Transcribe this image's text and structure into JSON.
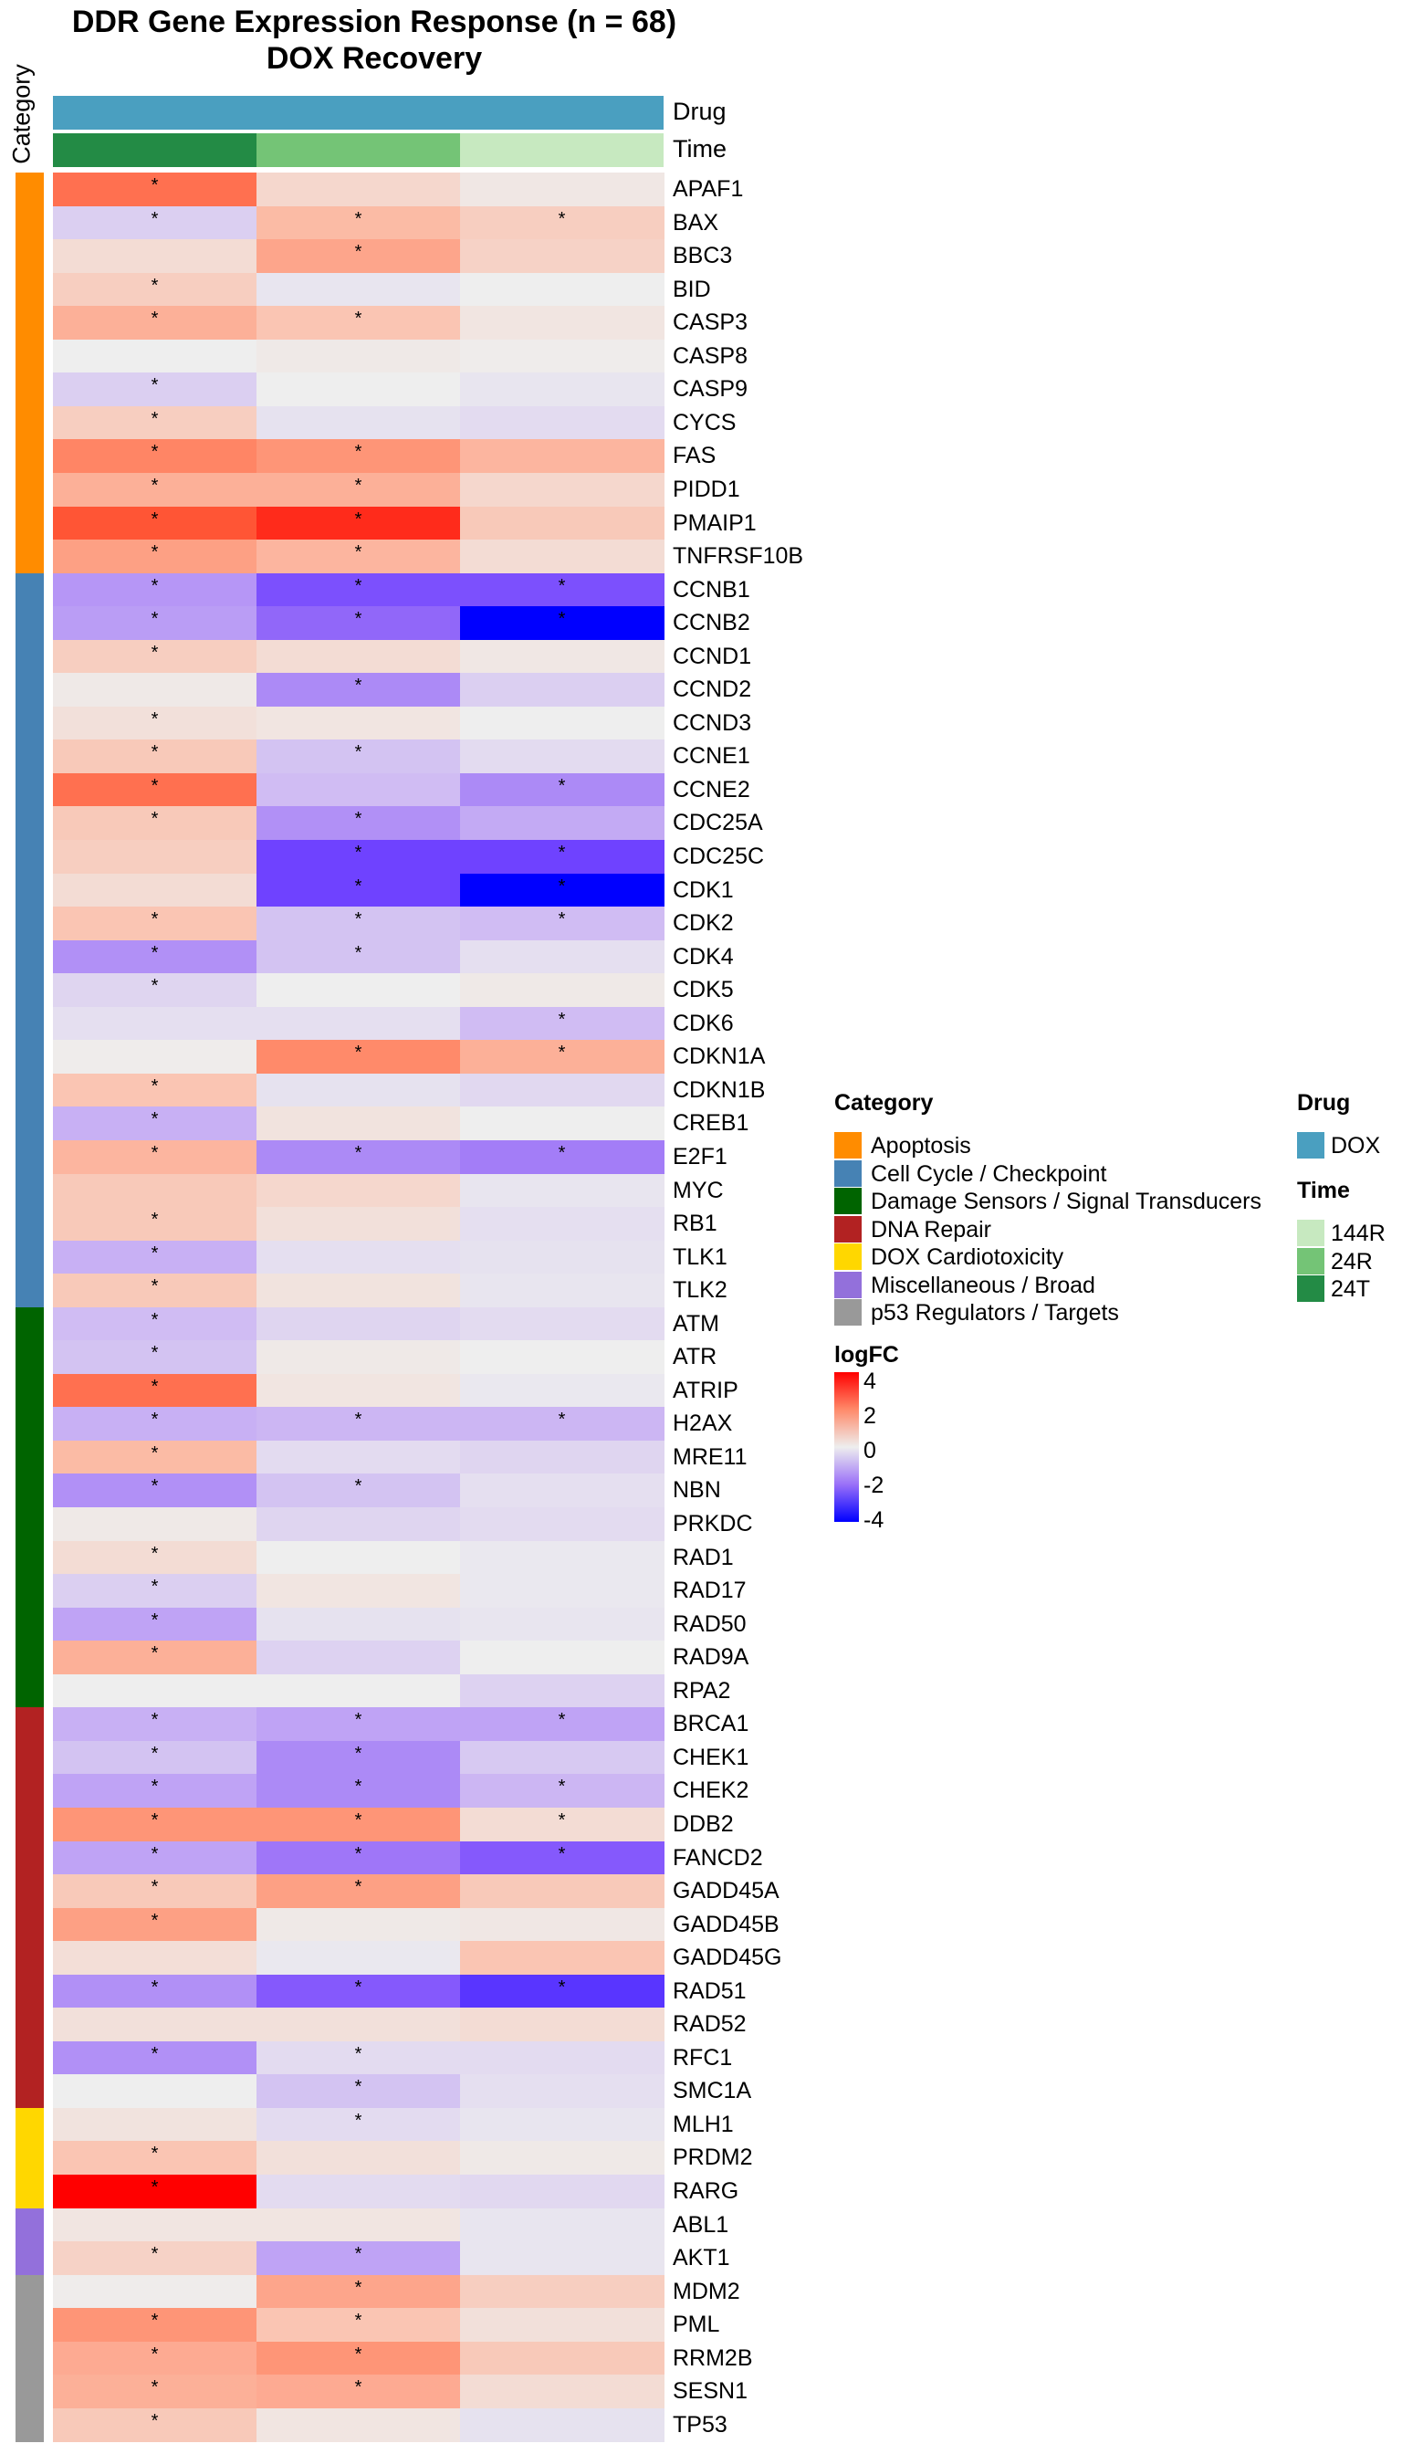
{
  "title": "DDR Gene Expression Response (n = 68)",
  "subtitle": "DOX Recovery",
  "category_axis_label": "Category",
  "annotations": {
    "drug_label": "Drug",
    "time_label": "Time",
    "drug_color": "#4A9FC0",
    "columns": [
      {
        "time": "24T",
        "drug": "DOX",
        "time_color": "#238B45"
      },
      {
        "time": "24R",
        "drug": "DOX",
        "time_color": "#74C476"
      },
      {
        "time": "144R",
        "drug": "DOX",
        "time_color": "#C7E9C0"
      }
    ]
  },
  "legend": {
    "category_title": "Category",
    "categories": [
      {
        "name": "Apoptosis",
        "color": "#FF8C00"
      },
      {
        "name": "Cell Cycle / Checkpoint",
        "color": "#4682B4"
      },
      {
        "name": "Damage Sensors / Signal Transducers",
        "color": "#006400"
      },
      {
        "name": "DNA Repair",
        "color": "#B22222"
      },
      {
        "name": "DOX Cardiotoxicity",
        "color": "#FFD700"
      },
      {
        "name": "Miscellaneous / Broad",
        "color": "#9370DB"
      },
      {
        "name": "p53 Regulators / Targets",
        "color": "#999999"
      }
    ],
    "drug_title": "Drug",
    "drugs": [
      {
        "name": "DOX",
        "color": "#4A9FC0"
      }
    ],
    "time_title": "Time",
    "times": [
      {
        "name": "144R",
        "color": "#C7E9C0"
      },
      {
        "name": "24R",
        "color": "#74C476"
      },
      {
        "name": "24T",
        "color": "#238B45"
      }
    ],
    "logfc_title": "logFC",
    "logfc_ticks": [
      "4",
      "2",
      "0",
      "-2",
      "-4"
    ]
  },
  "chart_data": {
    "type": "heatmap",
    "title": "DDR Gene Expression Response (n = 68)",
    "subtitle": "DOX Recovery",
    "columns": [
      "24T",
      "24R",
      "144R"
    ],
    "color_range": [
      -4,
      4
    ],
    "significance_marker": "*",
    "rows": [
      {
        "gene": "APAF1",
        "cat": 0,
        "v": [
          2.5,
          0.5,
          0.15
        ],
        "s": [
          1,
          0,
          0
        ]
      },
      {
        "gene": "BAX",
        "cat": 0,
        "v": [
          -0.5,
          1.1,
          0.7
        ],
        "s": [
          1,
          1,
          1
        ]
      },
      {
        "gene": "BBC3",
        "cat": 0,
        "v": [
          0.4,
          1.5,
          0.6
        ],
        "s": [
          0,
          1,
          0
        ]
      },
      {
        "gene": "BID",
        "cat": 0,
        "v": [
          0.7,
          -0.15,
          0
        ],
        "s": [
          1,
          0,
          0
        ]
      },
      {
        "gene": "CASP3",
        "cat": 0,
        "v": [
          1.3,
          0.9,
          0.2
        ],
        "s": [
          1,
          1,
          0
        ]
      },
      {
        "gene": "CASP8",
        "cat": 0,
        "v": [
          0,
          0.1,
          0.05
        ],
        "s": [
          0,
          0,
          0
        ]
      },
      {
        "gene": "CASP9",
        "cat": 0,
        "v": [
          -0.5,
          0,
          -0.15
        ],
        "s": [
          1,
          0,
          0
        ]
      },
      {
        "gene": "CYCS",
        "cat": 0,
        "v": [
          0.7,
          -0.2,
          -0.3
        ],
        "s": [
          1,
          0,
          0
        ]
      },
      {
        "gene": "FAS",
        "cat": 0,
        "v": [
          2.1,
          1.8,
          1.2
        ],
        "s": [
          1,
          1,
          0
        ]
      },
      {
        "gene": "PIDD1",
        "cat": 0,
        "v": [
          1.3,
          1.3,
          0.5
        ],
        "s": [
          1,
          1,
          0
        ]
      },
      {
        "gene": "PMAIP1",
        "cat": 0,
        "v": [
          3.0,
          3.5,
          0.8
        ],
        "s": [
          1,
          1,
          0
        ]
      },
      {
        "gene": "TNFRSF10B",
        "cat": 0,
        "v": [
          1.6,
          1.2,
          0.4
        ],
        "s": [
          1,
          1,
          0
        ]
      },
      {
        "gene": "CCNB1",
        "cat": 1,
        "v": [
          -1.4,
          -2.7,
          -2.7
        ],
        "s": [
          1,
          1,
          1
        ]
      },
      {
        "gene": "CCNB2",
        "cat": 1,
        "v": [
          -1.3,
          -2.2,
          -4
        ],
        "s": [
          1,
          1,
          1
        ]
      },
      {
        "gene": "CCND1",
        "cat": 1,
        "v": [
          0.7,
          0.4,
          0.15
        ],
        "s": [
          1,
          0,
          0
        ]
      },
      {
        "gene": "CCND2",
        "cat": 1,
        "v": [
          0.1,
          -1.6,
          -0.5
        ],
        "s": [
          0,
          1,
          0
        ]
      },
      {
        "gene": "CCND3",
        "cat": 1,
        "v": [
          0.3,
          0.2,
          0
        ],
        "s": [
          1,
          0,
          0
        ]
      },
      {
        "gene": "CCNE1",
        "cat": 1,
        "v": [
          0.8,
          -0.7,
          -0.3
        ],
        "s": [
          1,
          1,
          0
        ]
      },
      {
        "gene": "CCNE2",
        "cat": 1,
        "v": [
          2.5,
          -0.8,
          -1.6
        ],
        "s": [
          1,
          0,
          1
        ]
      },
      {
        "gene": "CDC25A",
        "cat": 1,
        "v": [
          0.8,
          -1.5,
          -1.1
        ],
        "s": [
          1,
          1,
          0
        ]
      },
      {
        "gene": "CDC25C",
        "cat": 1,
        "v": [
          0.7,
          -3,
          -3
        ],
        "s": [
          0,
          1,
          1
        ]
      },
      {
        "gene": "CDK1",
        "cat": 1,
        "v": [
          0.4,
          -3,
          -4
        ],
        "s": [
          0,
          1,
          1
        ]
      },
      {
        "gene": "CDK2",
        "cat": 1,
        "v": [
          0.9,
          -0.7,
          -0.8
        ],
        "s": [
          1,
          1,
          1
        ]
      },
      {
        "gene": "CDK4",
        "cat": 1,
        "v": [
          -1.5,
          -0.7,
          -0.25
        ],
        "s": [
          1,
          1,
          0
        ]
      },
      {
        "gene": "CDK5",
        "cat": 1,
        "v": [
          -0.4,
          0,
          0.1
        ],
        "s": [
          1,
          0,
          0
        ]
      },
      {
        "gene": "CDK6",
        "cat": 1,
        "v": [
          -0.25,
          -0.25,
          -0.8
        ],
        "s": [
          0,
          0,
          1
        ]
      },
      {
        "gene": "CDKN1A",
        "cat": 1,
        "v": [
          0.05,
          2.0,
          1.3
        ],
        "s": [
          0,
          1,
          1
        ]
      },
      {
        "gene": "CDKN1B",
        "cat": 1,
        "v": [
          0.9,
          -0.2,
          -0.35
        ],
        "s": [
          1,
          0,
          0
        ]
      },
      {
        "gene": "CREB1",
        "cat": 1,
        "v": [
          -1.0,
          0.25,
          0
        ],
        "s": [
          1,
          0,
          0
        ]
      },
      {
        "gene": "E2F1",
        "cat": 1,
        "v": [
          1.2,
          -1.6,
          -1.8
        ],
        "s": [
          1,
          1,
          1
        ]
      },
      {
        "gene": "MYC",
        "cat": 1,
        "v": [
          0.8,
          0.5,
          -0.15
        ],
        "s": [
          0,
          0,
          0
        ]
      },
      {
        "gene": "RB1",
        "cat": 1,
        "v": [
          0.8,
          0.3,
          -0.25
        ],
        "s": [
          1,
          0,
          0
        ]
      },
      {
        "gene": "TLK1",
        "cat": 1,
        "v": [
          -1.0,
          -0.25,
          -0.2
        ],
        "s": [
          1,
          0,
          0
        ]
      },
      {
        "gene": "TLK2",
        "cat": 1,
        "v": [
          0.8,
          0.25,
          -0.15
        ],
        "s": [
          1,
          0,
          0
        ]
      },
      {
        "gene": "ATM",
        "cat": 2,
        "v": [
          -0.8,
          -0.4,
          -0.3
        ],
        "s": [
          1,
          0,
          0
        ]
      },
      {
        "gene": "ATR",
        "cat": 2,
        "v": [
          -0.7,
          0.1,
          0
        ],
        "s": [
          1,
          0,
          0
        ]
      },
      {
        "gene": "ATRIP",
        "cat": 2,
        "v": [
          2.5,
          0.2,
          -0.1
        ],
        "s": [
          1,
          0,
          0
        ]
      },
      {
        "gene": "H2AX",
        "cat": 2,
        "v": [
          -1.0,
          -0.9,
          -0.9
        ],
        "s": [
          1,
          1,
          1
        ]
      },
      {
        "gene": "MRE11",
        "cat": 2,
        "v": [
          1.1,
          -0.3,
          -0.4
        ],
        "s": [
          1,
          0,
          0
        ]
      },
      {
        "gene": "NBN",
        "cat": 2,
        "v": [
          -1.5,
          -0.7,
          -0.25
        ],
        "s": [
          1,
          1,
          0
        ]
      },
      {
        "gene": "PRKDC",
        "cat": 2,
        "v": [
          0.1,
          -0.4,
          -0.3
        ],
        "s": [
          0,
          0,
          0
        ]
      },
      {
        "gene": "RAD1",
        "cat": 2,
        "v": [
          0.4,
          0,
          -0.1
        ],
        "s": [
          1,
          0,
          0
        ]
      },
      {
        "gene": "RAD17",
        "cat": 2,
        "v": [
          -0.5,
          0.2,
          -0.1
        ],
        "s": [
          1,
          0,
          0
        ]
      },
      {
        "gene": "RAD50",
        "cat": 2,
        "v": [
          -1.2,
          -0.2,
          -0.15
        ],
        "s": [
          1,
          0,
          0
        ]
      },
      {
        "gene": "RAD9A",
        "cat": 2,
        "v": [
          1.3,
          -0.45,
          0
        ],
        "s": [
          1,
          0,
          0
        ]
      },
      {
        "gene": "RPA2",
        "cat": 2,
        "v": [
          0,
          0,
          -0.45
        ],
        "s": [
          0,
          0,
          0
        ]
      },
      {
        "gene": "BRCA1",
        "cat": 3,
        "v": [
          -1.0,
          -1.2,
          -1.2
        ],
        "s": [
          1,
          1,
          1
        ]
      },
      {
        "gene": "CHEK1",
        "cat": 3,
        "v": [
          -0.7,
          -1.6,
          -0.6
        ],
        "s": [
          1,
          1,
          0
        ]
      },
      {
        "gene": "CHEK2",
        "cat": 3,
        "v": [
          -1.2,
          -1.6,
          -0.9
        ],
        "s": [
          1,
          1,
          1
        ]
      },
      {
        "gene": "DDB2",
        "cat": 3,
        "v": [
          1.8,
          1.8,
          0.4
        ],
        "s": [
          1,
          1,
          1
        ]
      },
      {
        "gene": "FANCD2",
        "cat": 3,
        "v": [
          -1.2,
          -1.9,
          -2.5
        ],
        "s": [
          1,
          1,
          1
        ]
      },
      {
        "gene": "GADD45A",
        "cat": 3,
        "v": [
          0.8,
          1.6,
          0.8
        ],
        "s": [
          1,
          1,
          0
        ]
      },
      {
        "gene": "GADD45B",
        "cat": 3,
        "v": [
          1.6,
          0.1,
          0.15
        ],
        "s": [
          1,
          0,
          0
        ]
      },
      {
        "gene": "GADD45G",
        "cat": 3,
        "v": [
          0.35,
          -0.1,
          0.9
        ],
        "s": [
          0,
          0,
          0
        ]
      },
      {
        "gene": "RAD51",
        "cat": 3,
        "v": [
          -1.5,
          -2.5,
          -3.2
        ],
        "s": [
          1,
          1,
          1
        ]
      },
      {
        "gene": "RAD52",
        "cat": 3,
        "v": [
          0.3,
          0.3,
          0.4
        ],
        "s": [
          0,
          0,
          0
        ]
      },
      {
        "gene": "RFC1",
        "cat": 3,
        "v": [
          -1.5,
          -0.3,
          -0.3
        ],
        "s": [
          1,
          1,
          0
        ]
      },
      {
        "gene": "SMC1A",
        "cat": 3,
        "v": [
          0,
          -0.7,
          -0.25
        ],
        "s": [
          0,
          1,
          0
        ]
      },
      {
        "gene": "MLH1",
        "cat": 4,
        "v": [
          0.25,
          -0.3,
          -0.15
        ],
        "s": [
          0,
          1,
          0
        ]
      },
      {
        "gene": "PRDM2",
        "cat": 4,
        "v": [
          0.9,
          0.3,
          0.1
        ],
        "s": [
          1,
          0,
          0
        ]
      },
      {
        "gene": "RARG",
        "cat": 4,
        "v": [
          4,
          -0.3,
          -0.35
        ],
        "s": [
          1,
          0,
          0
        ]
      },
      {
        "gene": "ABL1",
        "cat": 5,
        "v": [
          0.2,
          0.2,
          -0.15
        ],
        "s": [
          0,
          0,
          0
        ]
      },
      {
        "gene": "AKT1",
        "cat": 5,
        "v": [
          0.6,
          -1.2,
          -0.15
        ],
        "s": [
          1,
          1,
          0
        ]
      },
      {
        "gene": "MDM2",
        "cat": 6,
        "v": [
          0.05,
          1.5,
          0.7
        ],
        "s": [
          0,
          1,
          0
        ]
      },
      {
        "gene": "PML",
        "cat": 6,
        "v": [
          1.8,
          0.9,
          0.3
        ],
        "s": [
          1,
          1,
          0
        ]
      },
      {
        "gene": "RRM2B",
        "cat": 6,
        "v": [
          1.4,
          1.8,
          0.8
        ],
        "s": [
          1,
          1,
          0
        ]
      },
      {
        "gene": "SESN1",
        "cat": 6,
        "v": [
          1.3,
          1.4,
          0.4
        ],
        "s": [
          1,
          1,
          0
        ]
      },
      {
        "gene": "TP53",
        "cat": 6,
        "v": [
          0.8,
          0.2,
          -0.2
        ],
        "s": [
          1,
          0,
          0
        ]
      }
    ]
  }
}
